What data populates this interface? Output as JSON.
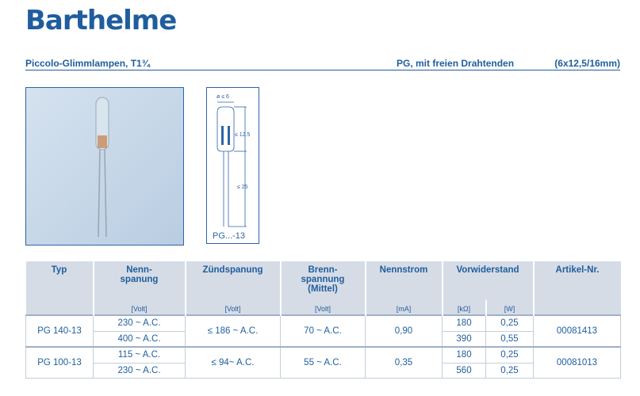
{
  "brand": "Barthelme",
  "header": {
    "left": "Piccolo-Glimmlampen, T1¾",
    "mid": "PG, mit freien Drahtenden",
    "right": "(6x12,5/16mm)"
  },
  "drawing": {
    "dia": "ø ≤ 6",
    "len1": "≤ 12.5",
    "len2": "≤ 25",
    "label": "PG...-13"
  },
  "table": {
    "headers": [
      "Typ",
      "Nenn-\nspanung",
      "Zündspanung",
      "Brenn-\nspannung\n(Mittel)",
      "Nennstrom",
      "Vorwiderstand",
      "Artikel-Nr."
    ],
    "units": [
      "[Volt]",
      "[Volt]",
      "[Volt]",
      "[mA]",
      "[kΩ]",
      "[W]"
    ],
    "rows": [
      {
        "typ": "PG 140-13",
        "nenn": [
          "230 ~ A.C.",
          "400 ~ A.C."
        ],
        "zuend": "≤ 186 ~ A.C.",
        "brenn": "70 ~ A.C.",
        "strom": "0,90",
        "kohm": [
          "180",
          "390"
        ],
        "watt": [
          "0,25",
          "0,55"
        ],
        "art": "00081413"
      },
      {
        "typ": "PG 100-13",
        "nenn": [
          "115 ~ A.C.",
          "230 ~ A.C."
        ],
        "zuend": "≤ 94~ A.C.",
        "brenn": "55 ~ A.C.",
        "strom": "0,35",
        "kohm": [
          "180",
          "560"
        ],
        "watt": [
          "0,25",
          "0,25"
        ],
        "art": "00081013"
      }
    ]
  },
  "colors": {
    "brand": "#1f5d9e",
    "header_bg": "#d6dce6"
  }
}
